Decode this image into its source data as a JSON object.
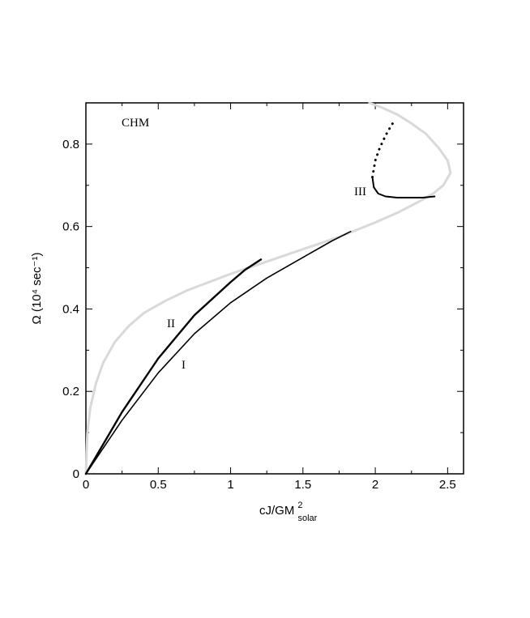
{
  "chart_data": {
    "type": "line",
    "ylabel": "Ω (10⁴ sec⁻¹)",
    "xlabel": "cJ/GM",
    "xlabel_sup": "2",
    "xlabel_sub": "solar",
    "xlim": [
      0,
      2.61
    ],
    "ylim": [
      0,
      0.9
    ],
    "xticks": [
      0,
      0.5,
      1,
      1.5,
      2,
      2.5
    ],
    "yticks": [
      0,
      0.2,
      0.4,
      0.6,
      0.8
    ],
    "xminorticks": [
      0.25,
      0.75,
      1.25,
      1.75,
      2.25
    ],
    "yminorticks": [
      0.1,
      0.3,
      0.5,
      0.7
    ],
    "series": [
      {
        "name": "CHM",
        "color": "#d9d9d9",
        "width": 3,
        "x": [
          0,
          0.005,
          0.01,
          0.03,
          0.07,
          0.12,
          0.2,
          0.3,
          0.4,
          0.55,
          0.7,
          0.85,
          1.0,
          1.25,
          1.5,
          1.75,
          2.0,
          2.15,
          2.3,
          2.4,
          2.47,
          2.52,
          2.5,
          2.44,
          2.35,
          2.25,
          2.15,
          2.05,
          1.96
        ],
        "values": [
          0,
          0.05,
          0.1,
          0.16,
          0.22,
          0.27,
          0.32,
          0.36,
          0.39,
          0.42,
          0.445,
          0.465,
          0.485,
          0.515,
          0.545,
          0.575,
          0.61,
          0.633,
          0.66,
          0.68,
          0.7,
          0.73,
          0.76,
          0.79,
          0.825,
          0.85,
          0.872,
          0.888,
          0.9
        ]
      },
      {
        "name": "I",
        "color": "#000000",
        "width": 1.6,
        "x": [
          0,
          0.25,
          0.5,
          0.75,
          1.0,
          1.25,
          1.5,
          1.7,
          1.83
        ],
        "values": [
          0,
          0.13,
          0.245,
          0.34,
          0.415,
          0.475,
          0.525,
          0.565,
          0.588
        ]
      },
      {
        "name": "II",
        "color": "#000000",
        "width": 2.4,
        "x": [
          0,
          0.25,
          0.5,
          0.75,
          1.0,
          1.1,
          1.21
        ],
        "values": [
          0,
          0.15,
          0.28,
          0.385,
          0.465,
          0.495,
          0.52
        ]
      },
      {
        "name": "III",
        "color": "#000000",
        "width": 2,
        "x": [
          1.98,
          1.99,
          2.02,
          2.07,
          2.15,
          2.25,
          2.33,
          2.41
        ],
        "values": [
          0.72,
          0.695,
          0.68,
          0.673,
          0.67,
          0.67,
          0.67,
          0.673
        ]
      },
      {
        "color": "#000000",
        "width": 3,
        "style": "dotted",
        "x": [
          1.98,
          2.0,
          2.03,
          2.07,
          2.11,
          2.14
        ],
        "values": [
          0.72,
          0.76,
          0.79,
          0.82,
          0.845,
          0.86
        ]
      }
    ]
  }
}
